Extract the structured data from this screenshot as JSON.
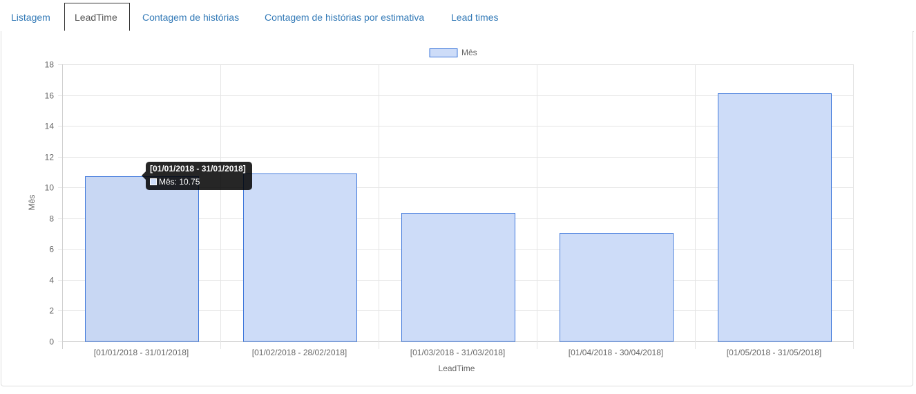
{
  "tabs": [
    {
      "label": "Listagem",
      "active": false
    },
    {
      "label": "LeadTime",
      "active": true
    },
    {
      "label": "Contagem de histórias",
      "active": false
    },
    {
      "label": "Contagem de histórias por estimativa",
      "active": false
    },
    {
      "label": "Lead times",
      "active": false
    }
  ],
  "colors": {
    "bar_fill": "#cddcf8",
    "bar_fill_hover": "#c8d7f3",
    "bar_border": "#3e77db",
    "grid": "#e5e5e5",
    "tab_link": "#337ab7"
  },
  "chart_data": {
    "type": "bar",
    "categories": [
      "[01/01/2018 - 31/01/2018]",
      "[01/02/2018 - 28/02/2018]",
      "[01/03/2018 - 31/03/2018]",
      "[01/04/2018 - 30/04/2018]",
      "[01/05/2018 - 31/05/2018]"
    ],
    "series": [
      {
        "name": "Mês",
        "values": [
          10.75,
          10.9,
          8.33,
          7.05,
          16.1
        ]
      }
    ],
    "xlabel": "LeadTime",
    "ylabel": "Mês",
    "ylim": [
      0,
      18
    ],
    "yticks": [
      0,
      2,
      4,
      6,
      8,
      10,
      12,
      14,
      16,
      18
    ],
    "grid": true,
    "legend": "top-center",
    "hovered_index": 0
  },
  "tooltip": {
    "title": "[01/01/2018 - 31/01/2018]",
    "label": "Mês: 10.75"
  }
}
